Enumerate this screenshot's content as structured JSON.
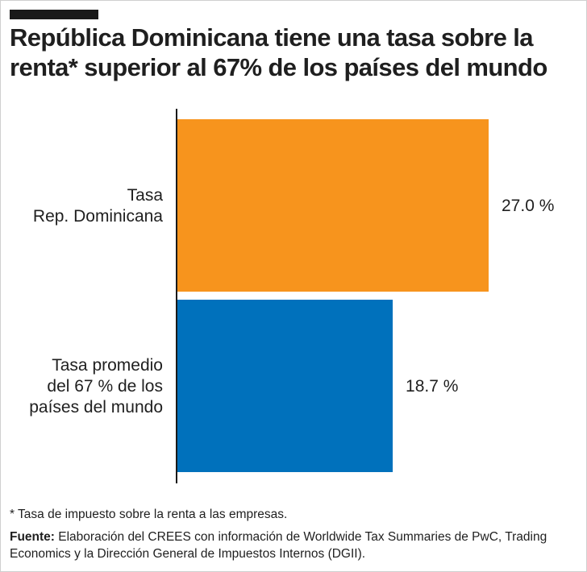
{
  "header": {
    "title": "República Dominicana tiene una tasa sobre la renta* superior al 67% de los países del mundo"
  },
  "chart_data": {
    "type": "bar",
    "orientation": "horizontal",
    "categories": [
      [
        "Tasa",
        "Rep. Dominicana"
      ],
      [
        "Tasa promedio",
        "del 67 % de los",
        "países del mundo"
      ]
    ],
    "values": [
      27.0,
      18.7
    ],
    "value_labels": [
      "27.0 %",
      "18.7 %"
    ],
    "colors": [
      "#F7941D",
      "#0071BC"
    ],
    "xlim": [
      0,
      30
    ],
    "grid": false,
    "title": "",
    "xlabel": "",
    "ylabel": ""
  },
  "footer": {
    "footnote": "* Tasa de impuesto sobre la renta a las empresas.",
    "source_label": "Fuente:",
    "source_text": " Elaboración del CREES con información de Worldwide Tax Summaries de PwC, Trading Economics y la Dirección General de Impuestos Internos (DGII)."
  }
}
